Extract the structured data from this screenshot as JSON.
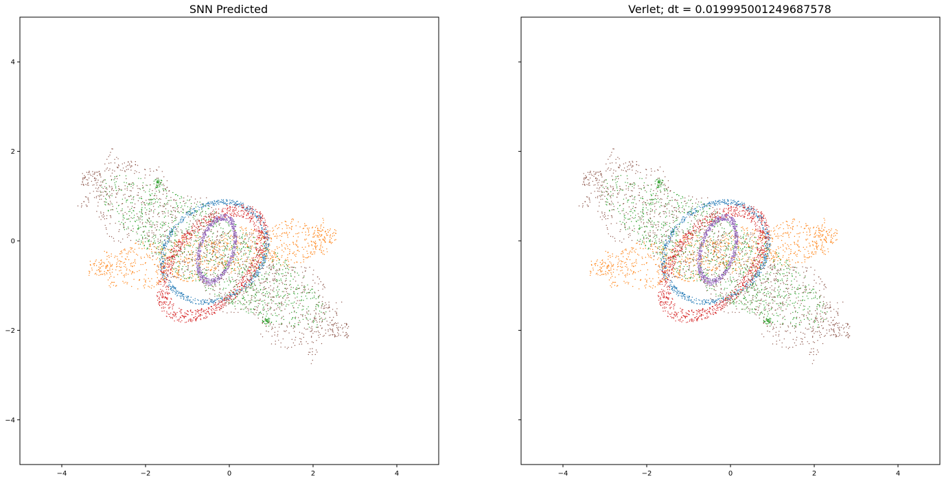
{
  "chart_data": [
    {
      "type": "scatter",
      "title": "SNN Predicted",
      "xlabel": "",
      "ylabel": "",
      "xlim": [
        -5,
        5
      ],
      "ylim": [
        -5,
        5
      ],
      "xticks": [
        -4,
        -2,
        0,
        2,
        4
      ],
      "yticks": [
        -4,
        -2,
        0,
        2,
        4
      ],
      "x_tick_labels": [
        "−4",
        "−2",
        "0",
        "2",
        "4"
      ],
      "y_tick_labels": [
        "−4",
        "−2",
        "0",
        "2",
        "4"
      ],
      "show_y_tick_labels": true,
      "grid": false,
      "legend": "none",
      "series": [
        {
          "color": "#1f77b4",
          "shape": "ring",
          "center": [
            -0.35,
            -0.25
          ],
          "rx": 1.3,
          "ry": 1.05,
          "rot_deg": 30,
          "jitter": 0.05,
          "points": 700
        },
        {
          "color": "#ff7f0e",
          "shape": "band",
          "center": [
            -0.3,
            -0.3
          ],
          "half_length": 2.65,
          "half_width": 0.55,
          "rot_deg": 8,
          "ends": [
            [
              -3.1,
              -0.6
            ],
            [
              2.3,
              0.1
            ]
          ],
          "points": 900
        },
        {
          "color": "#2ca02c",
          "shape": "disk",
          "center": [
            -0.4,
            -0.25
          ],
          "rx": 3.1,
          "ry": 0.85,
          "rot_deg": -30,
          "foci": [
            [
              -1.7,
              1.3
            ],
            [
              0.9,
              -1.8
            ]
          ],
          "points": 1100
        },
        {
          "color": "#d62728",
          "shape": "ring",
          "center": [
            -0.4,
            -0.5
          ],
          "rx": 1.45,
          "ry": 0.85,
          "rot_deg": 45,
          "jitter": 0.12,
          "points": 1000
        },
        {
          "color": "#9467bd",
          "shape": "ring",
          "center": [
            -0.3,
            -0.2
          ],
          "rx": 0.75,
          "ry": 0.4,
          "rot_deg": 72,
          "jitter": 0.1,
          "points": 700
        },
        {
          "color": "#8c564b",
          "shape": "band",
          "center": [
            -0.4,
            -0.3
          ],
          "half_length": 3.3,
          "half_width": 1.0,
          "rot_deg": -32,
          "ends": [
            [
              -3.3,
              1.4
            ],
            [
              2.6,
              -2.0
            ]
          ],
          "points": 1300
        }
      ]
    },
    {
      "type": "scatter",
      "title": "Verlet; dt = 0.019995001249687578",
      "xlabel": "",
      "ylabel": "",
      "xlim": [
        -5,
        5
      ],
      "ylim": [
        -5,
        5
      ],
      "xticks": [
        -4,
        -2,
        0,
        2,
        4
      ],
      "yticks": [
        -4,
        -2,
        0,
        2,
        4
      ],
      "x_tick_labels": [
        "−4",
        "−2",
        "0",
        "2",
        "4"
      ],
      "y_tick_labels": [],
      "show_y_tick_labels": false,
      "grid": false,
      "legend": "none",
      "series": [
        {
          "color": "#1f77b4",
          "shape": "ring",
          "center": [
            -0.35,
            -0.25
          ],
          "rx": 1.3,
          "ry": 1.05,
          "rot_deg": 30,
          "jitter": 0.05,
          "points": 700
        },
        {
          "color": "#ff7f0e",
          "shape": "band",
          "center": [
            -0.3,
            -0.3
          ],
          "half_length": 2.65,
          "half_width": 0.55,
          "rot_deg": 8,
          "ends": [
            [
              -3.1,
              -0.6
            ],
            [
              2.3,
              0.1
            ]
          ],
          "points": 900
        },
        {
          "color": "#2ca02c",
          "shape": "disk",
          "center": [
            -0.4,
            -0.25
          ],
          "rx": 3.1,
          "ry": 0.85,
          "rot_deg": -30,
          "foci": [
            [
              -1.7,
              1.3
            ],
            [
              0.9,
              -1.8
            ]
          ],
          "points": 1100
        },
        {
          "color": "#d62728",
          "shape": "ring",
          "center": [
            -0.4,
            -0.5
          ],
          "rx": 1.45,
          "ry": 0.85,
          "rot_deg": 45,
          "jitter": 0.12,
          "points": 1000
        },
        {
          "color": "#9467bd",
          "shape": "ring",
          "center": [
            -0.3,
            -0.2
          ],
          "rx": 0.75,
          "ry": 0.4,
          "rot_deg": 72,
          "jitter": 0.1,
          "points": 700
        },
        {
          "color": "#8c564b",
          "shape": "band",
          "center": [
            -0.4,
            -0.3
          ],
          "half_length": 3.3,
          "half_width": 1.0,
          "rot_deg": -32,
          "ends": [
            [
              -3.3,
              1.4
            ],
            [
              2.6,
              -2.0
            ]
          ],
          "points": 1300
        }
      ]
    }
  ]
}
